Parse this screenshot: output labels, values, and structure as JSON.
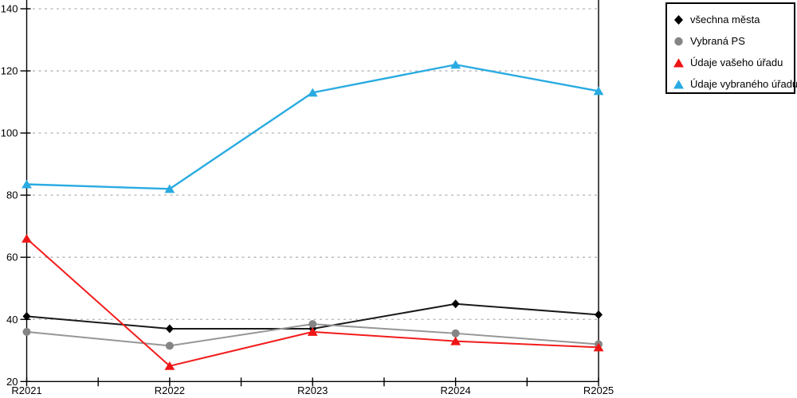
{
  "chart_data": {
    "type": "line",
    "title": "",
    "xlabel": "",
    "ylabel": "",
    "categories": [
      "R2021",
      "R2022",
      "R2023",
      "R2024",
      "R2025"
    ],
    "series": [
      {
        "name": "všechna města",
        "marker": "diamond",
        "line_color": "#1a1a1a",
        "marker_color": "#000000",
        "values": [
          41,
          37,
          37,
          45,
          41.5
        ]
      },
      {
        "name": "Vybraná PS",
        "marker": "circle",
        "line_color": "#969696",
        "marker_color": "#858585",
        "values": [
          36,
          31.5,
          38.5,
          35.5,
          32
        ]
      },
      {
        "name": "Údaje vašeho úřadu",
        "marker": "triangle",
        "line_color": "#f21c1c",
        "marker_color": "#ee1515",
        "values": [
          66,
          25,
          36,
          33,
          31
        ]
      },
      {
        "name": "Údaje vybraného úřadu",
        "marker": "triangle",
        "line_color": "#29abe2",
        "marker_color": "#29abe2",
        "values": [
          83.5,
          82,
          113,
          122,
          113.5
        ]
      }
    ],
    "ylim": [
      20,
      140
    ],
    "yticks": [
      20,
      40,
      60,
      80,
      100,
      120,
      140
    ],
    "grid": "horizontal-dashed",
    "grid_color": "#b3b3b3",
    "axis_color": "#000000",
    "tick_label_color": "#000000",
    "legend_position": "top-right"
  }
}
